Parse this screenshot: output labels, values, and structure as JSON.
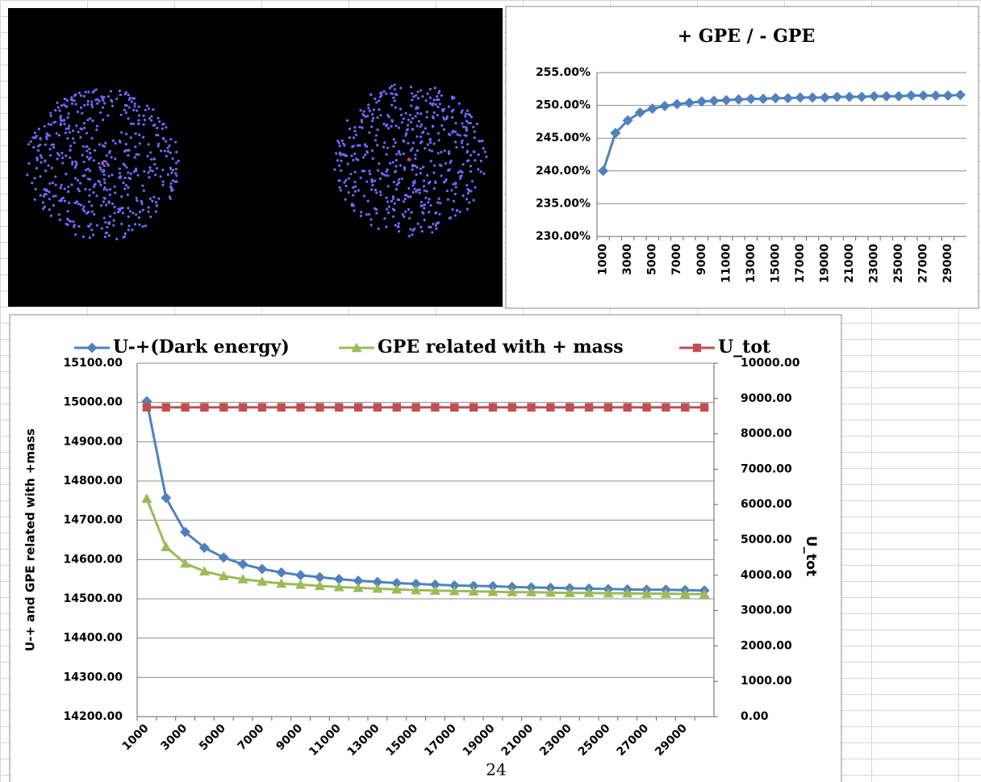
{
  "chart_data": [
    {
      "type": "line",
      "title": "+ GPE / - GPE",
      "categories": [
        "1000",
        null,
        "3000",
        null,
        "5000",
        null,
        "7000",
        null,
        "9000",
        null,
        "11000",
        null,
        "13000",
        null,
        "15000",
        null,
        "17000",
        null,
        "19000",
        null,
        "21000",
        null,
        "23000",
        null,
        "25000",
        null,
        "27000",
        null,
        "29000",
        null
      ],
      "series": [
        {
          "color": "#4f81bd",
          "marker": "diamond",
          "values": [
            240,
            245.8,
            247.7,
            248.9,
            249.5,
            249.9,
            250.2,
            250.4,
            250.6,
            250.7,
            250.8,
            250.9,
            251.0,
            251.0,
            251.1,
            251.1,
            251.2,
            251.2,
            251.2,
            251.3,
            251.3,
            251.3,
            251.4,
            251.4,
            251.4,
            251.5,
            251.5,
            251.5,
            251.5,
            251.6
          ]
        }
      ],
      "ylim": [
        230,
        255
      ],
      "yticks": [
        {
          "value": 230,
          "label": "230.00%"
        },
        {
          "value": 235,
          "label": "235.00%"
        },
        {
          "value": 240,
          "label": "240.00%"
        },
        {
          "value": 245,
          "label": "245.00%"
        },
        {
          "value": 250,
          "label": "250.00%"
        },
        {
          "value": 255,
          "label": "255.00%"
        }
      ],
      "grid": true
    },
    {
      "type": "line",
      "categories": [
        "1000",
        null,
        "3000",
        null,
        "5000",
        null,
        "7000",
        null,
        "9000",
        null,
        "11000",
        null,
        "13000",
        null,
        "15000",
        null,
        "17000",
        null,
        "19000",
        null,
        "21000",
        null,
        "23000",
        null,
        "25000",
        null,
        "27000",
        null,
        "29000",
        null
      ],
      "series": [
        {
          "name": "U-+(Dark energy)",
          "color": "#4f81bd",
          "marker": "diamond",
          "values": [
            15003,
            14757,
            14670,
            14630,
            14605,
            14588,
            14576,
            14567,
            14560,
            14555,
            14550,
            14546,
            14543,
            14540,
            14538,
            14536,
            14534,
            14533,
            14532,
            14530,
            14529,
            14528,
            14527,
            14526,
            14525,
            14524,
            14523,
            14523,
            14522,
            14521
          ]
        },
        {
          "name": "GPE related with + mass",
          "color": "#9bbb59",
          "marker": "triangle",
          "values": [
            14755,
            14632,
            14590,
            14570,
            14558,
            14550,
            14544,
            14539,
            14536,
            14533,
            14530,
            14528,
            14526,
            14524,
            14522,
            14521,
            14520,
            14519,
            14518,
            14517,
            14517,
            14516,
            14515,
            14515,
            14514,
            14514,
            14513,
            14513,
            14512,
            14512
          ]
        },
        {
          "name": "U_tot",
          "color": "#c0504d",
          "marker": "square",
          "axis": "y2",
          "values": [
            8750,
            8750,
            8750,
            8750,
            8750,
            8750,
            8750,
            8750,
            8750,
            8750,
            8750,
            8750,
            8750,
            8750,
            8750,
            8750,
            8750,
            8750,
            8750,
            8750,
            8750,
            8750,
            8750,
            8750,
            8750,
            8750,
            8750,
            8750,
            8750,
            8750
          ]
        }
      ],
      "y_label": "U-+ and  GPE related  with +mass",
      "y2_label": "U_tot",
      "ylim": [
        14200,
        15100
      ],
      "yticks": [
        {
          "value": 14200,
          "label": "14200.00"
        },
        {
          "value": 14300,
          "label": "14300.00"
        },
        {
          "value": 14400,
          "label": "14400.00"
        },
        {
          "value": 14500,
          "label": "14500.00"
        },
        {
          "value": 14600,
          "label": "14600.00"
        },
        {
          "value": 14700,
          "label": "14700.00"
        },
        {
          "value": 14800,
          "label": "14800.00"
        },
        {
          "value": 14900,
          "label": "14900.00"
        },
        {
          "value": 15000,
          "label": "15000.00"
        },
        {
          "value": 15100,
          "label": "15100.00"
        }
      ],
      "y2lim": [
        0,
        10000
      ],
      "y2ticks": [
        {
          "value": 0,
          "label": "0.00"
        },
        {
          "value": 1000,
          "label": "1000.00"
        },
        {
          "value": 2000,
          "label": "2000.00"
        },
        {
          "value": 3000,
          "label": "3000.00"
        },
        {
          "value": 4000,
          "label": "4000.00"
        },
        {
          "value": 5000,
          "label": "5000.00"
        },
        {
          "value": 6000,
          "label": "6000.00"
        },
        {
          "value": 7000,
          "label": "7000.00"
        },
        {
          "value": 8000,
          "label": "8000.00"
        },
        {
          "value": 9000,
          "label": "9000.00"
        },
        {
          "value": 10000,
          "label": "10000.00"
        }
      ],
      "grid": true,
      "legend": "top"
    }
  ],
  "footer": {
    "page_number": "24"
  }
}
